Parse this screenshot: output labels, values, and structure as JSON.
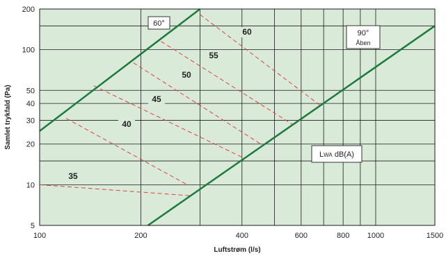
{
  "chart_data": {
    "type": "line",
    "scale": {
      "x": "log",
      "y": "log"
    },
    "xlabel": "Luftstrøm (l/s)",
    "ylabel": "Samlet trykfald (Pa)",
    "xlim": [
      100,
      1500
    ],
    "ylim": [
      5,
      200
    ],
    "x_ticks": [
      100,
      200,
      400,
      600,
      800,
      1000,
      1500
    ],
    "y_ticks": [
      5,
      10,
      20,
      30,
      40,
      50,
      100,
      200
    ],
    "grid": true,
    "colors": {
      "background": "#d9ead9",
      "grid": "#1a1a1a",
      "damper_line": "#1e7a3c",
      "level_line": "#e04040"
    },
    "damper_lines": [
      {
        "label": "60°",
        "points": [
          [
            100,
            25
          ],
          [
            300,
            200
          ]
        ]
      },
      {
        "label_line1": "90°",
        "label_line2": "Åben",
        "points": [
          [
            210,
            5
          ],
          [
            1500,
            150
          ]
        ]
      }
    ],
    "sound_levels": [
      {
        "label": "35",
        "points": [
          [
            100,
            10
          ],
          [
            280,
            8.3
          ]
        ]
      },
      {
        "label": "40",
        "points": [
          [
            120,
            31
          ],
          [
            275,
            10
          ]
        ]
      },
      {
        "label": "45",
        "points": [
          [
            145,
            54
          ],
          [
            400,
            16
          ]
        ]
      },
      {
        "label": "50",
        "points": [
          [
            190,
            80
          ],
          [
            455,
            20
          ]
        ]
      },
      {
        "label": "55",
        "points": [
          [
            230,
            115
          ],
          [
            565,
            28
          ]
        ]
      },
      {
        "label": "60",
        "points": [
          [
            300,
            182
          ],
          [
            690,
            38
          ]
        ]
      }
    ],
    "legend_box": {
      "prefix": "L",
      "subscript": "WA",
      "suffix": " dB(A)"
    }
  }
}
